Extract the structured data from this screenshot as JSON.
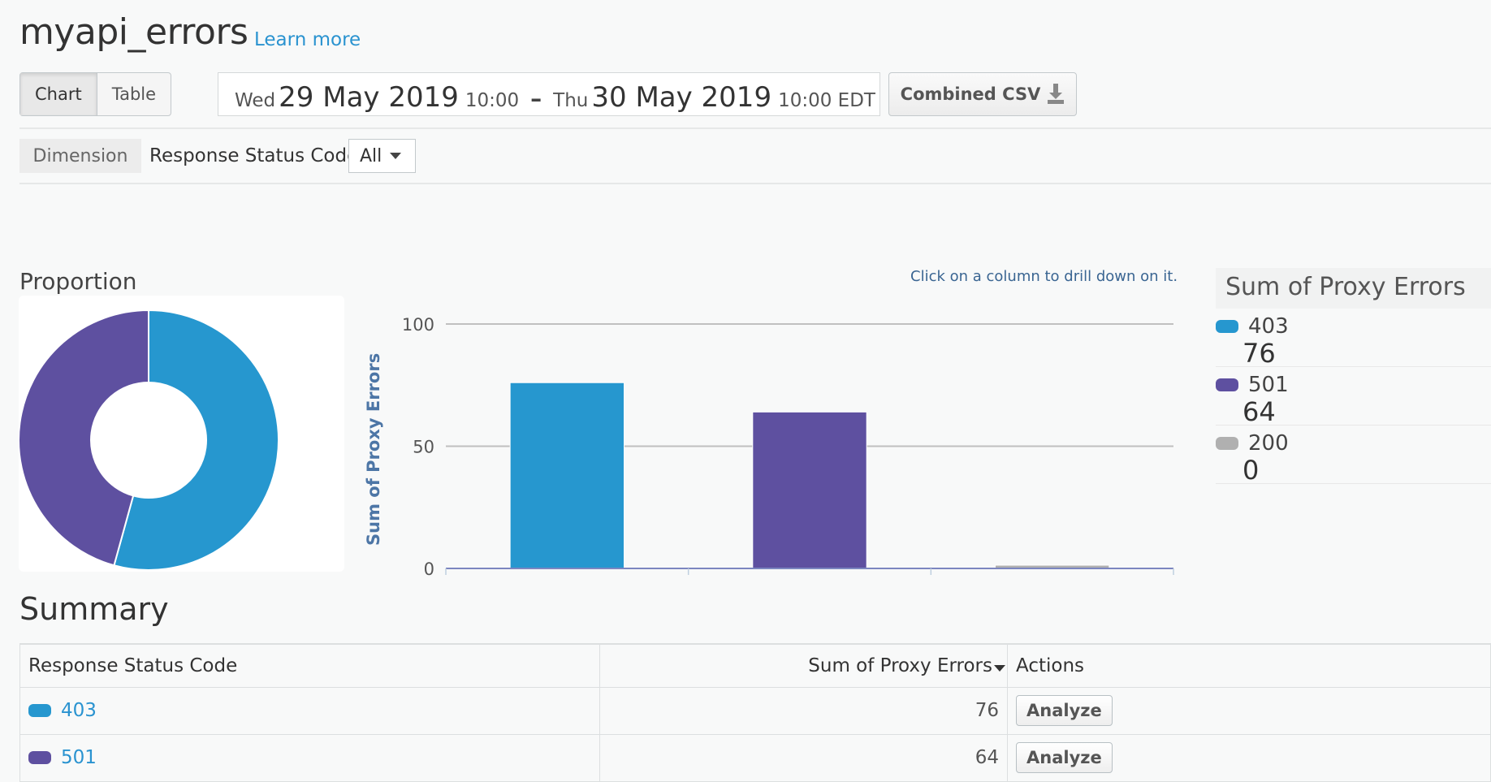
{
  "header": {
    "title": "myapi_errors",
    "learn_more": "Learn more"
  },
  "view_toggle": {
    "chart": "Chart",
    "table": "Table",
    "selected": "Chart"
  },
  "date_range": {
    "start_day": "Wed",
    "start_date": "29 May 2019",
    "start_time": "10:00",
    "separator": "–",
    "end_day": "Thu",
    "end_date": "30 May 2019",
    "end_time": "10:00 EDT"
  },
  "csv_button": {
    "label": "Combined CSV",
    "icon": "download-icon"
  },
  "dimension": {
    "label": "Dimension",
    "name": "Response Status Code",
    "selected": "All"
  },
  "proportion": {
    "label": "Proportion"
  },
  "hint": "Click on a column to drill down on it.",
  "legend": {
    "title": "Sum of Proxy Errors",
    "items": [
      {
        "code": "403",
        "value": "76",
        "color": "#2697cf"
      },
      {
        "code": "501",
        "value": "64",
        "color": "#5e50a0"
      },
      {
        "code": "200",
        "value": "0",
        "color": "#b0b0b0"
      }
    ]
  },
  "chart_data": [
    {
      "type": "pie",
      "donut": true,
      "title": "Proportion",
      "categories": [
        "403",
        "501",
        "200"
      ],
      "values": [
        76,
        64,
        0
      ],
      "colors": [
        "#2697cf",
        "#5e50a0",
        "#b0b0b0"
      ]
    },
    {
      "type": "bar",
      "categories": [
        "403",
        "501",
        "200"
      ],
      "values": [
        76,
        64,
        0
      ],
      "colors": [
        "#2697cf",
        "#5e50a0",
        "#b0b0b0"
      ],
      "ylabel": "Sum of Proxy Errors",
      "xlabel": "",
      "ylim": [
        0,
        100
      ],
      "yticks": [
        "0",
        "50",
        "100"
      ],
      "grid": true
    }
  ],
  "summary": {
    "title": "Summary",
    "columns": [
      "Response Status Code",
      "Sum of Proxy Errors",
      "Actions"
    ],
    "sort_icon": "caret-down-icon",
    "rows": [
      {
        "code": "403",
        "value": "76",
        "action": "Analyze",
        "color": "#2697cf"
      },
      {
        "code": "501",
        "value": "64",
        "action": "Analyze",
        "color": "#5e50a0"
      }
    ]
  }
}
